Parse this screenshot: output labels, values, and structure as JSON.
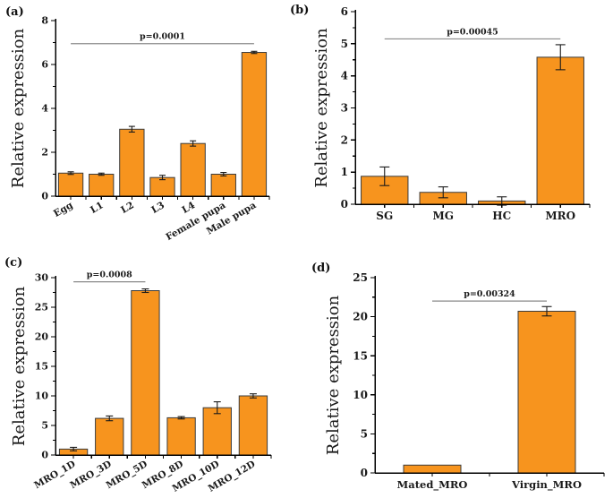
{
  "figure": {
    "background": "#ffffff",
    "bar_color": "#F7941E",
    "bar_border_color": "#3b3b3b",
    "axis_color": "#000000",
    "error_bar_color": "#1a1a1a",
    "sig_line_color": "#8a8a8a",
    "text_color": "#1a1a1a"
  },
  "chart_data": [
    {
      "panel_label": "(a)",
      "type": "bar",
      "title": "",
      "xlabel": "",
      "ylabel": "Relative expression",
      "categories": [
        "Egg",
        "L1",
        "L2",
        "L3",
        "L4",
        "Female pupa",
        "Male pupa"
      ],
      "values": [
        1.05,
        1.0,
        3.05,
        0.85,
        2.4,
        1.0,
        6.55
      ],
      "errors": [
        0.06,
        0.05,
        0.13,
        0.1,
        0.12,
        0.08,
        0.05
      ],
      "ylim": [
        0,
        8
      ],
      "yticks": [
        0,
        2,
        4,
        6,
        8
      ],
      "grid": false,
      "legend": null,
      "significance": {
        "label": "p=0.0001",
        "from_category": "Egg",
        "to_category": "Male pupa",
        "from_index": 0,
        "to_index": 6,
        "y_value": 6.95
      }
    },
    {
      "panel_label": "(b)",
      "type": "bar",
      "title": "",
      "xlabel": "",
      "ylabel": "Relative expression",
      "categories": [
        "SG",
        "MG",
        "HC",
        "MRO"
      ],
      "values": [
        0.87,
        0.37,
        0.1,
        4.58
      ],
      "errors": [
        0.29,
        0.17,
        0.13,
        0.39
      ],
      "ylim": [
        0,
        6
      ],
      "yticks": [
        0,
        1,
        2,
        3,
        4,
        5,
        6
      ],
      "grid": false,
      "legend": null,
      "significance": {
        "label": "p=0.00045",
        "from_category": "SG",
        "to_category": "MRO",
        "from_index": 0,
        "to_index": 3,
        "y_value": 5.15
      }
    },
    {
      "panel_label": "(c)",
      "type": "bar",
      "title": "",
      "xlabel": "",
      "ylabel": "Relative expression",
      "categories": [
        "MRO_1D",
        "MRO_3D",
        "MRO_5D",
        "MRO_8D",
        "MRO_10D",
        "MRO_12D"
      ],
      "values": [
        1.0,
        6.2,
        27.8,
        6.3,
        8.0,
        10.0
      ],
      "errors": [
        0.3,
        0.4,
        0.3,
        0.2,
        1.0,
        0.35
      ],
      "ylim": [
        0,
        30
      ],
      "yticks": [
        0,
        5,
        10,
        15,
        20,
        25,
        30
      ],
      "grid": false,
      "legend": null,
      "significance": {
        "label": "p=0.0008",
        "from_category": "MRO_1D",
        "to_category": "MRO_5D",
        "from_index": 0,
        "to_index": 2,
        "y_value": 29.3
      }
    },
    {
      "panel_label": "(d)",
      "type": "bar",
      "title": "",
      "xlabel": "",
      "ylabel": "Relative expression",
      "categories": [
        "Mated_MRO",
        "Virgin_MRO"
      ],
      "values": [
        1.0,
        20.7
      ],
      "errors": [
        0,
        0.6
      ],
      "ylim": [
        0,
        25
      ],
      "yticks": [
        0,
        5,
        10,
        15,
        20,
        25
      ],
      "grid": false,
      "legend": null,
      "significance": {
        "label": "p=0.00324",
        "from_category": "Mated_MRO",
        "to_category": "Virgin_MRO",
        "from_index": 0,
        "to_index": 1,
        "y_value": 22.0
      }
    }
  ]
}
